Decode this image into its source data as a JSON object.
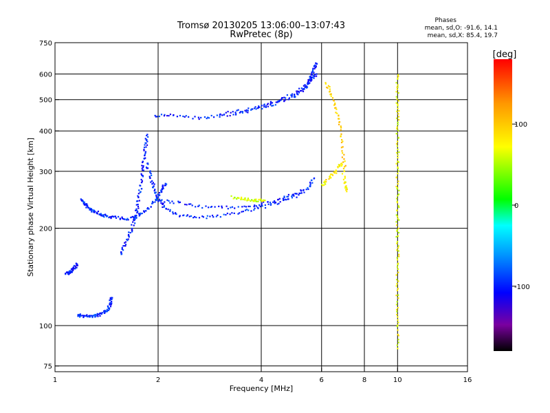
{
  "chart_data": {
    "type": "scatter",
    "title": "Tromsø 20130205 13:06:00–13:07:43",
    "subtitle": "RwPretec (8p)",
    "xlabel": "Frequency [MHz]",
    "ylabel": "Stationary phase Virtual Height [km]",
    "x_scale": "log",
    "y_scale": "log",
    "xlim": [
      1,
      16
    ],
    "ylim": [
      72,
      750
    ],
    "x_ticks": [
      1,
      2,
      4,
      6,
      8,
      10,
      16
    ],
    "x_tick_labels": [
      "1",
      "2",
      "4",
      "6",
      "8",
      "10",
      "16"
    ],
    "y_ticks": [
      75,
      100,
      200,
      300,
      400,
      500,
      600,
      750
    ],
    "y_tick_labels": [
      "75",
      "100",
      "200",
      "300",
      "400",
      "500",
      "600",
      "750"
    ],
    "grid": true,
    "stats": {
      "heading": "Phases",
      "line_o": "mean, sd,O: -91.6, 14.1",
      "line_x": "mean, sd,X:  85.4, 19.7"
    },
    "colorbar": {
      "label": "[deg]",
      "range": [
        -180,
        180
      ],
      "ticks": [
        100,
        0,
        -100
      ],
      "tick_labels": [
        "100",
        "0",
        "-100"
      ]
    },
    "traces": [
      {
        "name": "",
        "phase": -95,
        "points": [
          [
            1.17,
            108
          ],
          [
            1.2,
            107
          ],
          [
            1.25,
            107
          ],
          [
            1.3,
            107
          ],
          [
            1.35,
            108
          ],
          [
            1.4,
            110
          ],
          [
            1.43,
            113
          ],
          [
            1.45,
            117
          ],
          [
            1.46,
            122
          ]
        ]
      },
      {
        "name": "",
        "phase": -100,
        "points": [
          [
            1.08,
            145
          ],
          [
            1.1,
            146
          ],
          [
            1.12,
            148
          ],
          [
            1.14,
            151
          ],
          [
            1.16,
            155
          ]
        ]
      },
      {
        "name": "",
        "phase": -95,
        "points": [
          [
            1.2,
            245
          ],
          [
            1.22,
            238
          ],
          [
            1.25,
            232
          ],
          [
            1.3,
            226
          ],
          [
            1.35,
            221
          ],
          [
            1.4,
            218
          ],
          [
            1.5,
            216
          ],
          [
            1.6,
            214
          ],
          [
            1.7,
            216
          ],
          [
            1.8,
            222
          ],
          [
            1.9,
            235
          ],
          [
            2.0,
            250
          ],
          [
            2.05,
            263
          ],
          [
            2.1,
            275
          ]
        ]
      },
      {
        "name": "",
        "phase": -100,
        "points": [
          [
            1.55,
            165
          ],
          [
            1.6,
            178
          ],
          [
            1.65,
            192
          ],
          [
            1.7,
            208
          ],
          [
            1.73,
            225
          ],
          [
            1.75,
            245
          ],
          [
            1.78,
            270
          ],
          [
            1.8,
            300
          ],
          [
            1.82,
            330
          ],
          [
            1.84,
            360
          ],
          [
            1.86,
            390
          ]
        ]
      },
      {
        "name": "",
        "phase": -95,
        "points": [
          [
            1.85,
            320
          ],
          [
            1.9,
            290
          ],
          [
            1.95,
            265
          ],
          [
            2.0,
            245
          ],
          [
            2.1,
            230
          ],
          [
            2.3,
            220
          ],
          [
            2.6,
            216
          ],
          [
            3.0,
            218
          ],
          [
            3.5,
            225
          ],
          [
            4.0,
            232
          ],
          [
            4.5,
            240
          ],
          [
            5.0,
            250
          ],
          [
            5.5,
            268
          ],
          [
            5.7,
            285
          ]
        ]
      },
      {
        "name": "",
        "phase": -100,
        "points": [
          [
            1.95,
            445
          ],
          [
            2.2,
            448
          ],
          [
            2.6,
            438
          ],
          [
            3.0,
            445
          ],
          [
            3.5,
            455
          ],
          [
            4.0,
            470
          ],
          [
            4.5,
            490
          ],
          [
            5.0,
            510
          ],
          [
            5.3,
            535
          ],
          [
            5.5,
            560
          ],
          [
            5.6,
            590
          ],
          [
            5.7,
            620
          ],
          [
            5.8,
            645
          ]
        ]
      },
      {
        "name": "",
        "phase": -100,
        "points": [
          [
            3.0,
            450
          ],
          [
            3.5,
            462
          ],
          [
            4.0,
            478
          ],
          [
            4.5,
            500
          ],
          [
            5.0,
            520
          ],
          [
            5.4,
            555
          ],
          [
            5.6,
            580
          ],
          [
            5.8,
            600
          ]
        ]
      },
      {
        "name": "",
        "phase": -100,
        "points": [
          [
            2.0,
            245
          ],
          [
            2.3,
            240
          ],
          [
            2.7,
            233
          ],
          [
            3.2,
            232
          ],
          [
            3.8,
            235
          ],
          [
            4.3,
            242
          ],
          [
            4.8,
            252
          ],
          [
            5.3,
            262
          ]
        ]
      },
      {
        "name": "",
        "phase": 60,
        "points": [
          [
            3.3,
            250
          ],
          [
            3.5,
            247
          ],
          [
            3.7,
            245
          ],
          [
            3.9,
            244
          ],
          [
            4.1,
            244
          ]
        ]
      },
      {
        "name": "",
        "phase": 80,
        "points": [
          [
            6.0,
            270
          ],
          [
            6.3,
            285
          ],
          [
            6.6,
            300
          ],
          [
            6.9,
            320
          ],
          [
            7.0,
            280
          ],
          [
            7.1,
            260
          ]
        ]
      },
      {
        "name": "",
        "phase": 95,
        "points": [
          [
            6.2,
            560
          ],
          [
            6.4,
            520
          ],
          [
            6.6,
            470
          ],
          [
            6.8,
            420
          ],
          [
            6.9,
            360
          ],
          [
            7.0,
            310
          ]
        ]
      },
      {
        "name": "",
        "phase": 70,
        "points": [
          [
            10.0,
            600
          ],
          [
            10.0,
            520
          ],
          [
            10.0,
            450
          ],
          [
            10.0,
            390
          ],
          [
            10.0,
            330
          ],
          [
            10.0,
            280
          ],
          [
            10.0,
            240
          ],
          [
            10.0,
            205
          ],
          [
            10.0,
            175
          ],
          [
            10.0,
            150
          ],
          [
            10.0,
            125
          ],
          [
            10.0,
            105
          ],
          [
            10.0,
            85
          ]
        ]
      }
    ]
  }
}
